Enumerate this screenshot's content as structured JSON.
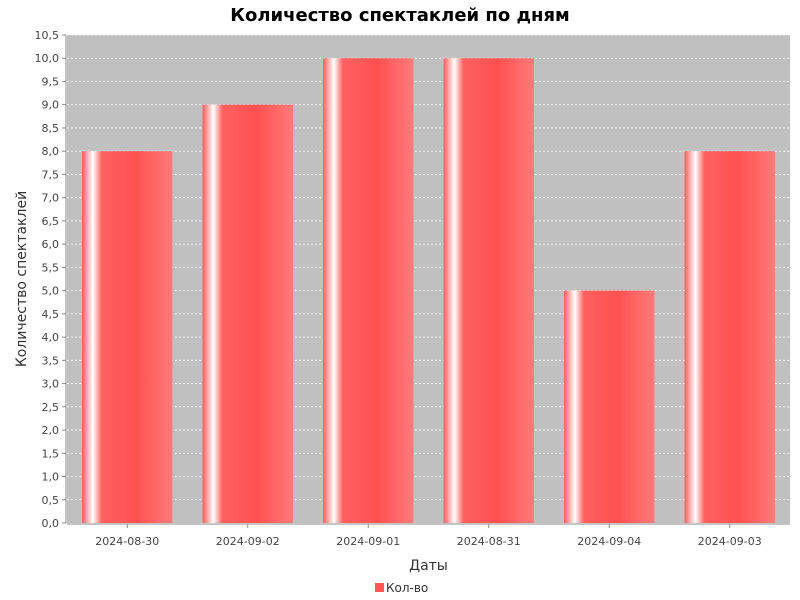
{
  "chart_data": {
    "type": "bar",
    "title": "Количество спектаклей по дням",
    "xlabel": "Даты",
    "ylabel": "Количество спектаклей",
    "categories": [
      "2024-08-30",
      "2024-09-02",
      "2024-09-01",
      "2024-08-31",
      "2024-09-04",
      "2024-09-03"
    ],
    "series": [
      {
        "name": "Кол-во",
        "values": [
          8,
          9,
          10,
          10,
          5,
          8
        ]
      }
    ],
    "ylim": [
      0,
      10.5
    ],
    "ytick_step": 0.5,
    "ytick_labels": [
      "0,0",
      "0,5",
      "1,0",
      "1,5",
      "2,0",
      "2,5",
      "3,0",
      "3,5",
      "4,0",
      "4,5",
      "5,0",
      "5,5",
      "6,0",
      "6,5",
      "7,0",
      "7,5",
      "8,0",
      "8,5",
      "9,0",
      "9,5",
      "10,0",
      "10,5"
    ],
    "grid": true,
    "legend_position": "bottom-center",
    "colors": {
      "bar": "#ff5555",
      "bar_light": "#ff7777",
      "plot_background": "#c0c0c0",
      "gridline": "#ffffff",
      "legend_swatch": "#ff5555"
    }
  }
}
